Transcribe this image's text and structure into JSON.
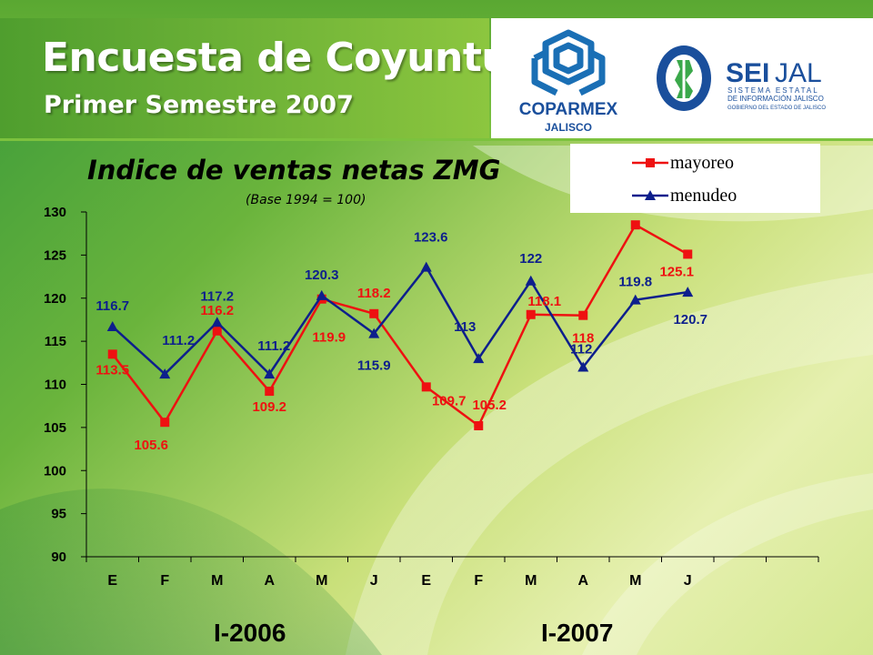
{
  "header": {
    "title": "Encuesta de Coyuntura",
    "subtitle": "Primer Semestre 2007"
  },
  "logos": {
    "coparmex_name": "COPARMEX",
    "coparmex_region": "JALISCO",
    "seijal_name_a": "SEI",
    "seijal_name_b": "JAL",
    "seijal_line1": "SISTEMA ESTATAL",
    "seijal_line2": "DE INFORMACIÓN JALISCO",
    "seijal_line3": "GOBIERNO DEL ESTADO DE JALISCO"
  },
  "chart_data": {
    "type": "line",
    "title": "Indice de ventas netas ZMG",
    "subtitle": "(Base 1994 = 100)",
    "categories": [
      "E",
      "F",
      "M",
      "A",
      "M",
      "J",
      "E",
      "F",
      "M",
      "A",
      "M",
      "J"
    ],
    "periods": [
      "I-2006",
      "I-2007"
    ],
    "ylim": [
      90,
      130
    ],
    "yticks": [
      90,
      95,
      100,
      105,
      110,
      115,
      120,
      125,
      130
    ],
    "series": [
      {
        "name": "mayoreo",
        "color": "#ee1111",
        "marker": "square",
        "values": [
          113.5,
          105.6,
          116.2,
          109.2,
          119.9,
          118.2,
          109.7,
          105.2,
          118.1,
          118,
          128.5,
          125.1
        ],
        "labels": [
          "113.5",
          "105.6",
          "116.2",
          "109.2",
          "119.9",
          "118.2",
          "109.7",
          "105.2",
          "118.1",
          "118",
          "",
          "125.1"
        ]
      },
      {
        "name": "menudeo",
        "color": "#0d1f8c",
        "marker": "triangle",
        "values": [
          116.7,
          111.2,
          117.2,
          111.2,
          120.3,
          115.9,
          123.6,
          113,
          122,
          112,
          119.8,
          120.7
        ],
        "labels": [
          "116.7",
          "111.2",
          "117.2",
          "111.2",
          "120.3",
          "115.9",
          "123.6",
          "113",
          "122",
          "112",
          "119.8",
          "120.7"
        ]
      }
    ],
    "legend_position": "top-right",
    "grid": false
  }
}
